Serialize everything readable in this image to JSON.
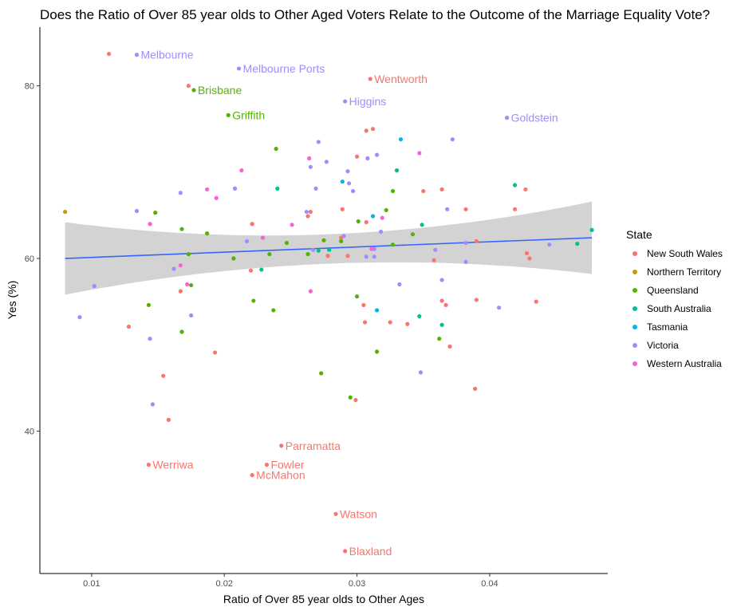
{
  "chart_data": {
    "type": "scatter",
    "title": "Does the Ratio of Over 85 year olds to Other Aged Voters Relate to the Outcome of the Marriage Equality Vote?",
    "xlabel": "Ratio of Over 85 year olds to Other Ages",
    "ylabel": "Yes (%)",
    "xlim": [
      0.0061,
      0.0489
    ],
    "ylim": [
      23.5,
      86.8
    ],
    "x_ticks": [
      0.01,
      0.02,
      0.03,
      0.04
    ],
    "x_tick_labels": [
      "0.01",
      "0.02",
      "0.03",
      "0.04"
    ],
    "y_ticks": [
      40,
      60,
      80
    ],
    "y_tick_labels": [
      "40",
      "60",
      "80"
    ],
    "grid": false,
    "legend": {
      "title": "State",
      "position": "right",
      "entries": [
        {
          "name": "New South Wales",
          "color": "#F8766D"
        },
        {
          "name": "Northern Territory",
          "color": "#C49A00"
        },
        {
          "name": "Queensland",
          "color": "#53B400"
        },
        {
          "name": "South Australia",
          "color": "#00C094"
        },
        {
          "name": "Tasmania",
          "color": "#00B6EB"
        },
        {
          "name": "Victoria",
          "color": "#A58AFF"
        },
        {
          "name": "Western Australia",
          "color": "#FB61D7"
        }
      ]
    },
    "trend": {
      "method": "linear",
      "x": [
        0.008,
        0.0477
      ],
      "y": [
        60.0,
        62.4
      ],
      "ci_lower": [
        55.8,
        58.2
      ],
      "ci_upper": [
        64.2,
        66.6
      ],
      "ci_mid_x": 0.028,
      "ci_mid_lower": 59.4,
      "ci_mid_upper": 62.8,
      "line_color": "#3366FF",
      "band_color": "#D3D3D3"
    },
    "labeled_points": [
      {
        "x": 0.0134,
        "y": 83.6,
        "label": "Melbourne",
        "state": "Victoria"
      },
      {
        "x": 0.0211,
        "y": 82.0,
        "label": "Melbourne Ports",
        "state": "Victoria"
      },
      {
        "x": 0.0177,
        "y": 79.5,
        "label": "Brisbane",
        "state": "Queensland"
      },
      {
        "x": 0.0203,
        "y": 76.6,
        "label": "Griffith",
        "state": "Queensland"
      },
      {
        "x": 0.031,
        "y": 80.8,
        "label": "Wentworth",
        "state": "New South Wales"
      },
      {
        "x": 0.0291,
        "y": 78.2,
        "label": "Higgins",
        "state": "Victoria"
      },
      {
        "x": 0.0413,
        "y": 76.3,
        "label": "Goldstein",
        "state": "Victoria"
      },
      {
        "x": 0.0243,
        "y": 38.3,
        "label": "Parramatta",
        "state": "New South Wales"
      },
      {
        "x": 0.0143,
        "y": 36.1,
        "label": "Werriwa",
        "state": "New South Wales"
      },
      {
        "x": 0.0232,
        "y": 36.1,
        "label": "Fowler",
        "state": "New South Wales"
      },
      {
        "x": 0.0221,
        "y": 34.9,
        "label": "McMahon",
        "state": "New South Wales"
      },
      {
        "x": 0.0284,
        "y": 30.4,
        "label": "Watson",
        "state": "New South Wales"
      },
      {
        "x": 0.0291,
        "y": 26.1,
        "label": "Blaxland",
        "state": "New South Wales"
      }
    ],
    "points": [
      {
        "x": 0.0113,
        "y": 83.7,
        "state": "New South Wales"
      },
      {
        "x": 0.0173,
        "y": 80.0,
        "state": "New South Wales"
      },
      {
        "x": 0.0307,
        "y": 74.8,
        "state": "New South Wales"
      },
      {
        "x": 0.0312,
        "y": 75.0,
        "state": "New South Wales"
      },
      {
        "x": 0.03,
        "y": 71.8,
        "state": "New South Wales"
      },
      {
        "x": 0.0364,
        "y": 68.0,
        "state": "New South Wales"
      },
      {
        "x": 0.035,
        "y": 67.8,
        "state": "New South Wales"
      },
      {
        "x": 0.0427,
        "y": 68.0,
        "state": "New South Wales"
      },
      {
        "x": 0.0265,
        "y": 65.4,
        "state": "New South Wales"
      },
      {
        "x": 0.0263,
        "y": 64.9,
        "state": "New South Wales"
      },
      {
        "x": 0.0289,
        "y": 65.7,
        "state": "New South Wales"
      },
      {
        "x": 0.0382,
        "y": 65.7,
        "state": "New South Wales"
      },
      {
        "x": 0.0419,
        "y": 65.7,
        "state": "New South Wales"
      },
      {
        "x": 0.0221,
        "y": 64.0,
        "state": "New South Wales"
      },
      {
        "x": 0.0307,
        "y": 64.2,
        "state": "New South Wales"
      },
      {
        "x": 0.0288,
        "y": 62.4,
        "state": "New South Wales"
      },
      {
        "x": 0.0428,
        "y": 60.6,
        "state": "New South Wales"
      },
      {
        "x": 0.043,
        "y": 60.0,
        "state": "New South Wales"
      },
      {
        "x": 0.039,
        "y": 62.0,
        "state": "New South Wales"
      },
      {
        "x": 0.0278,
        "y": 60.3,
        "state": "New South Wales"
      },
      {
        "x": 0.0293,
        "y": 60.3,
        "state": "New South Wales"
      },
      {
        "x": 0.0358,
        "y": 59.8,
        "state": "New South Wales"
      },
      {
        "x": 0.022,
        "y": 58.6,
        "state": "New South Wales"
      },
      {
        "x": 0.0167,
        "y": 56.2,
        "state": "New South Wales"
      },
      {
        "x": 0.0364,
        "y": 55.1,
        "state": "New South Wales"
      },
      {
        "x": 0.039,
        "y": 55.2,
        "state": "New South Wales"
      },
      {
        "x": 0.0435,
        "y": 55.0,
        "state": "New South Wales"
      },
      {
        "x": 0.0367,
        "y": 54.6,
        "state": "New South Wales"
      },
      {
        "x": 0.0305,
        "y": 54.6,
        "state": "New South Wales"
      },
      {
        "x": 0.0306,
        "y": 52.6,
        "state": "New South Wales"
      },
      {
        "x": 0.0325,
        "y": 52.6,
        "state": "New South Wales"
      },
      {
        "x": 0.0338,
        "y": 52.4,
        "state": "New South Wales"
      },
      {
        "x": 0.0128,
        "y": 52.1,
        "state": "New South Wales"
      },
      {
        "x": 0.037,
        "y": 49.8,
        "state": "New South Wales"
      },
      {
        "x": 0.0193,
        "y": 49.1,
        "state": "New South Wales"
      },
      {
        "x": 0.0154,
        "y": 46.4,
        "state": "New South Wales"
      },
      {
        "x": 0.0389,
        "y": 44.9,
        "state": "New South Wales"
      },
      {
        "x": 0.0299,
        "y": 43.6,
        "state": "New South Wales"
      },
      {
        "x": 0.0158,
        "y": 41.3,
        "state": "New South Wales"
      },
      {
        "x": 0.008,
        "y": 65.4,
        "state": "Northern Territory"
      },
      {
        "x": 0.0239,
        "y": 72.7,
        "state": "Queensland"
      },
      {
        "x": 0.0327,
        "y": 67.8,
        "state": "Queensland"
      },
      {
        "x": 0.0148,
        "y": 65.3,
        "state": "Queensland"
      },
      {
        "x": 0.0322,
        "y": 65.6,
        "state": "Queensland"
      },
      {
        "x": 0.0301,
        "y": 64.3,
        "state": "Queensland"
      },
      {
        "x": 0.0168,
        "y": 63.4,
        "state": "Queensland"
      },
      {
        "x": 0.0187,
        "y": 62.9,
        "state": "Queensland"
      },
      {
        "x": 0.0342,
        "y": 62.8,
        "state": "Queensland"
      },
      {
        "x": 0.0275,
        "y": 62.1,
        "state": "Queensland"
      },
      {
        "x": 0.0288,
        "y": 62.0,
        "state": "Queensland"
      },
      {
        "x": 0.0247,
        "y": 61.8,
        "state": "Queensland"
      },
      {
        "x": 0.0327,
        "y": 61.6,
        "state": "Queensland"
      },
      {
        "x": 0.0173,
        "y": 60.5,
        "state": "Queensland"
      },
      {
        "x": 0.0234,
        "y": 60.5,
        "state": "Queensland"
      },
      {
        "x": 0.0263,
        "y": 60.5,
        "state": "Queensland"
      },
      {
        "x": 0.0207,
        "y": 60.0,
        "state": "Queensland"
      },
      {
        "x": 0.0175,
        "y": 56.9,
        "state": "Queensland"
      },
      {
        "x": 0.03,
        "y": 55.6,
        "state": "Queensland"
      },
      {
        "x": 0.0222,
        "y": 55.1,
        "state": "Queensland"
      },
      {
        "x": 0.0143,
        "y": 54.6,
        "state": "Queensland"
      },
      {
        "x": 0.0237,
        "y": 54.0,
        "state": "Queensland"
      },
      {
        "x": 0.0168,
        "y": 51.5,
        "state": "Queensland"
      },
      {
        "x": 0.0362,
        "y": 50.7,
        "state": "Queensland"
      },
      {
        "x": 0.0315,
        "y": 49.2,
        "state": "Queensland"
      },
      {
        "x": 0.0273,
        "y": 46.7,
        "state": "Queensland"
      },
      {
        "x": 0.0295,
        "y": 43.9,
        "state": "Queensland"
      },
      {
        "x": 0.024,
        "y": 68.1,
        "state": "South Australia"
      },
      {
        "x": 0.0419,
        "y": 68.5,
        "state": "South Australia"
      },
      {
        "x": 0.033,
        "y": 70.2,
        "state": "South Australia"
      },
      {
        "x": 0.0349,
        "y": 63.9,
        "state": "South Australia"
      },
      {
        "x": 0.0477,
        "y": 63.3,
        "state": "South Australia"
      },
      {
        "x": 0.0466,
        "y": 61.7,
        "state": "South Australia"
      },
      {
        "x": 0.0279,
        "y": 61.0,
        "state": "South Australia"
      },
      {
        "x": 0.0271,
        "y": 60.9,
        "state": "South Australia"
      },
      {
        "x": 0.0228,
        "y": 58.7,
        "state": "South Australia"
      },
      {
        "x": 0.0347,
        "y": 53.3,
        "state": "South Australia"
      },
      {
        "x": 0.0364,
        "y": 52.3,
        "state": "South Australia"
      },
      {
        "x": 0.0333,
        "y": 73.8,
        "state": "Tasmania"
      },
      {
        "x": 0.0289,
        "y": 68.9,
        "state": "Tasmania"
      },
      {
        "x": 0.0312,
        "y": 64.9,
        "state": "Tasmania"
      },
      {
        "x": 0.0315,
        "y": 54.0,
        "state": "Tasmania"
      },
      {
        "x": 0.0372,
        "y": 73.8,
        "state": "Victoria"
      },
      {
        "x": 0.0271,
        "y": 73.5,
        "state": "Victoria"
      },
      {
        "x": 0.0308,
        "y": 71.6,
        "state": "Victoria"
      },
      {
        "x": 0.0315,
        "y": 72.0,
        "state": "Victoria"
      },
      {
        "x": 0.0277,
        "y": 71.2,
        "state": "Victoria"
      },
      {
        "x": 0.0293,
        "y": 70.1,
        "state": "Victoria"
      },
      {
        "x": 0.0265,
        "y": 70.6,
        "state": "Victoria"
      },
      {
        "x": 0.0294,
        "y": 68.7,
        "state": "Victoria"
      },
      {
        "x": 0.0208,
        "y": 68.1,
        "state": "Victoria"
      },
      {
        "x": 0.0269,
        "y": 68.1,
        "state": "Victoria"
      },
      {
        "x": 0.0167,
        "y": 67.6,
        "state": "Victoria"
      },
      {
        "x": 0.0297,
        "y": 67.8,
        "state": "Victoria"
      },
      {
        "x": 0.0134,
        "y": 65.5,
        "state": "Victoria"
      },
      {
        "x": 0.0262,
        "y": 65.4,
        "state": "Victoria"
      },
      {
        "x": 0.0368,
        "y": 65.7,
        "state": "Victoria"
      },
      {
        "x": 0.0318,
        "y": 63.1,
        "state": "Victoria"
      },
      {
        "x": 0.029,
        "y": 62.6,
        "state": "Victoria"
      },
      {
        "x": 0.0217,
        "y": 62.0,
        "state": "Victoria"
      },
      {
        "x": 0.0382,
        "y": 61.8,
        "state": "Victoria"
      },
      {
        "x": 0.0445,
        "y": 61.6,
        "state": "Victoria"
      },
      {
        "x": 0.0313,
        "y": 61.1,
        "state": "Victoria"
      },
      {
        "x": 0.0267,
        "y": 61.0,
        "state": "Victoria"
      },
      {
        "x": 0.0359,
        "y": 61.0,
        "state": "Victoria"
      },
      {
        "x": 0.0307,
        "y": 60.2,
        "state": "Victoria"
      },
      {
        "x": 0.0313,
        "y": 60.2,
        "state": "Victoria"
      },
      {
        "x": 0.0382,
        "y": 59.6,
        "state": "Victoria"
      },
      {
        "x": 0.0162,
        "y": 58.8,
        "state": "Victoria"
      },
      {
        "x": 0.0364,
        "y": 57.5,
        "state": "Victoria"
      },
      {
        "x": 0.0332,
        "y": 57.0,
        "state": "Victoria"
      },
      {
        "x": 0.0102,
        "y": 56.8,
        "state": "Victoria"
      },
      {
        "x": 0.0407,
        "y": 54.3,
        "state": "Victoria"
      },
      {
        "x": 0.0175,
        "y": 53.4,
        "state": "Victoria"
      },
      {
        "x": 0.0091,
        "y": 53.2,
        "state": "Victoria"
      },
      {
        "x": 0.0144,
        "y": 50.7,
        "state": "Victoria"
      },
      {
        "x": 0.0348,
        "y": 46.8,
        "state": "Victoria"
      },
      {
        "x": 0.0146,
        "y": 43.1,
        "state": "Victoria"
      },
      {
        "x": 0.0347,
        "y": 72.2,
        "state": "Western Australia"
      },
      {
        "x": 0.0264,
        "y": 71.6,
        "state": "Western Australia"
      },
      {
        "x": 0.0213,
        "y": 70.2,
        "state": "Western Australia"
      },
      {
        "x": 0.0187,
        "y": 68.0,
        "state": "Western Australia"
      },
      {
        "x": 0.0194,
        "y": 67.0,
        "state": "Western Australia"
      },
      {
        "x": 0.0319,
        "y": 64.7,
        "state": "Western Australia"
      },
      {
        "x": 0.0144,
        "y": 64.0,
        "state": "Western Australia"
      },
      {
        "x": 0.0251,
        "y": 63.9,
        "state": "Western Australia"
      },
      {
        "x": 0.0229,
        "y": 62.4,
        "state": "Western Australia"
      },
      {
        "x": 0.0311,
        "y": 61.1,
        "state": "Western Australia"
      },
      {
        "x": 0.0167,
        "y": 59.2,
        "state": "Western Australia"
      },
      {
        "x": 0.0172,
        "y": 57.0,
        "state": "Western Australia"
      },
      {
        "x": 0.0265,
        "y": 56.2,
        "state": "Western Australia"
      }
    ]
  }
}
